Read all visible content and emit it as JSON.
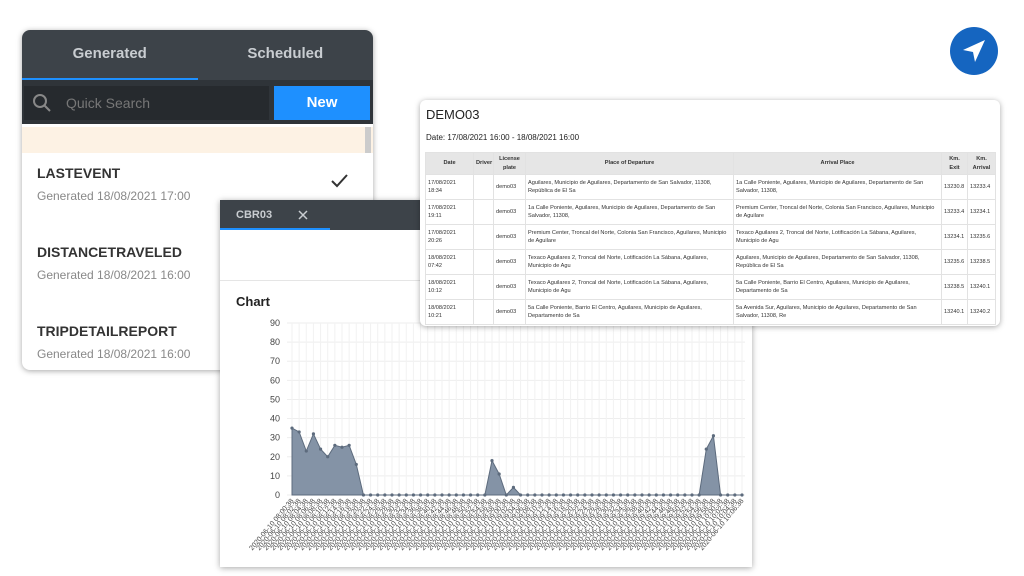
{
  "nav_panel": {
    "tabs": [
      "Generated",
      "Scheduled"
    ],
    "search_placeholder": "Quick Search",
    "new_button": "New",
    "reports": [
      {
        "name": "LASTEVENT",
        "generated": "Generated 18/08/2021 17:00"
      },
      {
        "name": "DISTANCETRAVELED",
        "generated": "Generated 18/08/2021 16:00"
      },
      {
        "name": "TRIPDETAILREPORT",
        "generated": "Generated 18/08/2021 16:00"
      }
    ]
  },
  "report_tab": {
    "tab": "CBR03"
  },
  "chart_data": {
    "type": "area",
    "title": "Chart",
    "color": "#8493a6",
    "line_color": "#5d6b7d",
    "categories": [
      "2020-06-10 08:00:38",
      "2020-06-10 08:02:38",
      "2020-06-10 08:04:38",
      "2020-06-10 08:06:38",
      "2020-06-10 08:08:38",
      "2020-06-10 08:10:38",
      "2020-06-10 08:12:38",
      "2020-06-10 08:14:38",
      "2020-06-10 08:16:38",
      "2020-06-10 08:18:38",
      "2020-06-10 08:20:38",
      "2020-06-10 08:22:38",
      "2020-06-10 08:24:38",
      "2020-06-10 08:26:38",
      "2020-06-10 08:28:38",
      "2020-06-10 08:30:38",
      "2020-06-10 08:32:38",
      "2020-06-10 08:34:38",
      "2020-06-10 08:36:38",
      "2020-06-10 08:38:38",
      "2020-06-10 08:40:38",
      "2020-06-10 08:42:38",
      "2020-06-10 08:44:38",
      "2020-06-10 08:46:38",
      "2020-06-10 08:48:38",
      "2020-06-10 08:50:38",
      "2020-06-10 08:52:38",
      "2020-06-10 08:54:38",
      "2020-06-10 08:56:38",
      "2020-06-10 08:58:38",
      "2020-06-10 09:00:38",
      "2020-06-10 09:02:38",
      "2020-06-10 09:04:38",
      "2020-06-10 09:06:38",
      "2020-06-10 09:08:38",
      "2020-06-10 09:10:38",
      "2020-06-10 09:12:38",
      "2020-06-10 09:14:38",
      "2020-06-10 09:16:38",
      "2020-06-10 09:18:38",
      "2020-06-10 09:20:38",
      "2020-06-10 09:22:38",
      "2020-06-10 09:24:38",
      "2020-06-10 09:26:38",
      "2020-06-10 09:28:38",
      "2020-06-10 09:30:38",
      "2020-06-10 09:32:38",
      "2020-06-10 09:34:38",
      "2020-06-10 09:36:38",
      "2020-06-10 09:38:38",
      "2020-06-10 09:40:38",
      "2020-06-10 09:42:38",
      "2020-06-10 09:44:38",
      "2020-06-10 09:46:38",
      "2020-06-10 09:48:38",
      "2020-06-10 09:50:38",
      "2020-06-10 09:52:38",
      "2020-06-10 09:54:38",
      "2020-06-10 09:56:38",
      "2020-06-10 09:58:38",
      "2020-06-10 10:00:38",
      "2020-06-10 10:02:38",
      "2020-06-10 10:04:38",
      "2020-06-10 10:06:38"
    ],
    "values": [
      35,
      33,
      23,
      32,
      24,
      20,
      26,
      25,
      26,
      16,
      0,
      0,
      0,
      0,
      0,
      0,
      0,
      0,
      0,
      0,
      0,
      0,
      0,
      0,
      0,
      0,
      0,
      0,
      18,
      11,
      0,
      4,
      0,
      0,
      0,
      0,
      0,
      0,
      0,
      0,
      0,
      0,
      0,
      0,
      0,
      0,
      0,
      0,
      0,
      0,
      0,
      0,
      0,
      0,
      0,
      0,
      0,
      0,
      24,
      31,
      0,
      0,
      0,
      0
    ],
    "ylim": [
      0,
      90
    ],
    "yticks": [
      0,
      10,
      20,
      30,
      40,
      50,
      60,
      70,
      80,
      90
    ],
    "grid": true
  },
  "table": {
    "title": "DEMO03",
    "date_range": "Date: 17/08/2021 16:00 - 18/08/2021 16:00",
    "headers": [
      "Date",
      "Driver",
      "License plate",
      "Place of Departure",
      "Arrival Place",
      "Km. Exit",
      "Km. Arrival"
    ],
    "rows": [
      [
        "17/08/2021 18:34",
        "demo03",
        "Aguilares, Municipio de Aguilares, Departamento de San Salvador, 11308, República de El Sa",
        "1a Calle Poniente, Aguilares, Municipio de Aguilares, Departamento de San Salvador, 11308,",
        13230.8,
        13233.4
      ],
      [
        "17/08/2021 19:11",
        "demo03",
        "1a Calle Poniente, Aguilares, Municipio de Aguilares, Departamento de San Salvador, 11308,",
        "Premium Center, Troncal del Norte, Colonia San Francisco, Aguilares, Municipio de Aguilare",
        13233.4,
        13234.1
      ],
      [
        "17/08/2021 20:26",
        "demo03",
        "Premium Center, Troncal del Norte, Colonia San Francisco, Aguilares, Municipio de Aguilare",
        "Texaco Aguilares 2, Troncal del Norte, Lotificación La Sábana, Aguilares, Municipio de Agu",
        13234.1,
        13235.6
      ],
      [
        "18/08/2021 07:42",
        "demo03",
        "Texaco Aguilares 2, Troncal del Norte, Lotificación La Sábana, Aguilares, Municipio de Agu",
        "Aguilares, Municipio de Aguilares, Departamento de San Salvador, 11308, República de El Sa",
        13235.6,
        13238.5
      ],
      [
        "18/08/2021 10:12",
        "demo03",
        "Texaco Aguilares 2, Troncal del Norte, Lotificación La Sábana, Aguilares, Municipio de Agu",
        "5a Calle Poniente, Barrio El Centro, Aguilares, Municipio de Aguilares, Departamento de Sa",
        13238.5,
        13240.1
      ],
      [
        "18/08/2021 10:21",
        "demo03",
        "5a Calle Poniente, Barrio El Centro, Aguilares, Municipio de Aguilares, Departamento de Sa",
        "5a Avenida Sur, Aguilares, Municipio de Aguilares, Departamento de San Salvador, 11308, Re",
        13240.1,
        13240.2
      ]
    ]
  }
}
